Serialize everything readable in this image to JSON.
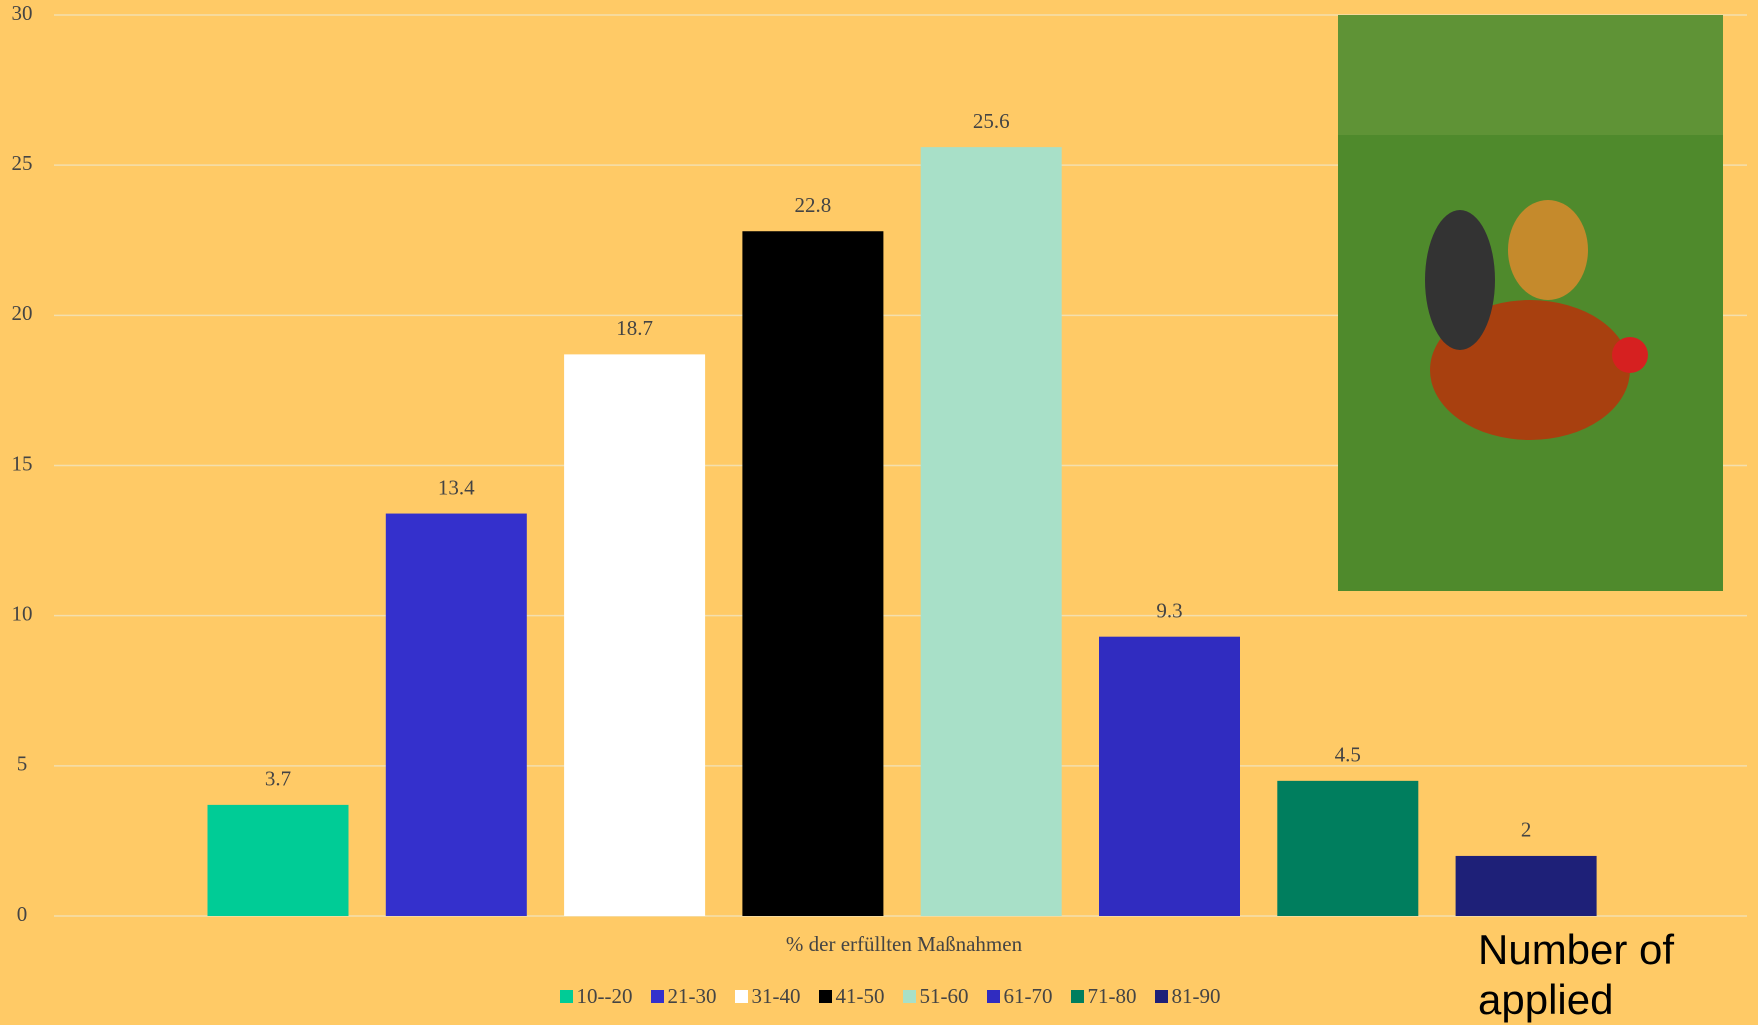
{
  "chart_data": {
    "type": "bar",
    "x_label": "% der erfüllten Maßnahmen",
    "annotation": "Number of applied",
    "series": [
      {
        "name": "10--20",
        "color": "#00cc96",
        "values": [
          3.7
        ]
      },
      {
        "name": "21-30",
        "color": "#3430cc",
        "values": [
          13.4
        ]
      },
      {
        "name": "31-40",
        "color": "#ffffff",
        "values": [
          18.7
        ]
      },
      {
        "name": "41-50",
        "color": "#000000",
        "values": [
          22.8
        ]
      },
      {
        "name": "51-60",
        "color": "#a8e0c8",
        "values": [
          25.6
        ]
      },
      {
        "name": "61-70",
        "color": "#302cc0",
        "values": [
          9.3
        ]
      },
      {
        "name": "71-80",
        "color": "#007e5e",
        "values": [
          4.5
        ]
      },
      {
        "name": "81-90",
        "color": "#1e2078",
        "values": [
          2
        ]
      }
    ],
    "ylim": [
      0,
      30
    ],
    "yticks": [
      0,
      5,
      10,
      15,
      20,
      25,
      30
    ],
    "grid": true
  }
}
